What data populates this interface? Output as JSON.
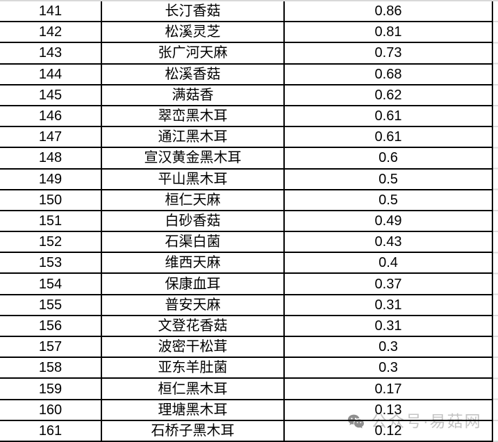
{
  "table": {
    "column_keys": [
      "rank",
      "name",
      "value"
    ],
    "rows": [
      {
        "rank": "141",
        "name": "长汀香菇",
        "value": "0.86"
      },
      {
        "rank": "142",
        "name": "松溪灵芝",
        "value": "0.81"
      },
      {
        "rank": "143",
        "name": "张广河天麻",
        "value": "0.73"
      },
      {
        "rank": "144",
        "name": "松溪香菇",
        "value": "0.68"
      },
      {
        "rank": "145",
        "name": "满菇香",
        "value": "0.62"
      },
      {
        "rank": "146",
        "name": "翠峦黑木耳",
        "value": "0.61"
      },
      {
        "rank": "147",
        "name": "通江黑木耳",
        "value": "0.61"
      },
      {
        "rank": "148",
        "name": "宣汉黄金黑木耳",
        "value": "0.6"
      },
      {
        "rank": "149",
        "name": "平山黑木耳",
        "value": "0.5"
      },
      {
        "rank": "150",
        "name": "桓仁天麻",
        "value": "0.5"
      },
      {
        "rank": "151",
        "name": "白砂香菇",
        "value": "0.49"
      },
      {
        "rank": "152",
        "name": "石渠白菌",
        "value": "0.43"
      },
      {
        "rank": "153",
        "name": "维西天麻",
        "value": "0.4"
      },
      {
        "rank": "154",
        "name": "保康血耳",
        "value": "0.37"
      },
      {
        "rank": "155",
        "name": "普安天麻",
        "value": "0.31"
      },
      {
        "rank": "156",
        "name": "文登花香菇",
        "value": "0.31"
      },
      {
        "rank": "157",
        "name": "波密干松茸",
        "value": "0.3"
      },
      {
        "rank": "158",
        "name": "亚东羊肚菌",
        "value": "0.3"
      },
      {
        "rank": "159",
        "name": "桓仁黑木耳",
        "value": "0.17"
      },
      {
        "rank": "160",
        "name": "理塘黑木耳",
        "value": "0.13"
      },
      {
        "rank": "161",
        "name": "石桥子黑木耳",
        "value": "0.12"
      }
    ]
  },
  "watermark": {
    "icon": "wechat-icon",
    "text": "公众号·易菇网"
  },
  "colors": {
    "border": "#000000",
    "cell_text": "#000000",
    "top_strip": "#d8d8d8",
    "gridline_stub": "#dcdcdc",
    "watermark_text": "#c4c4c4",
    "watermark_icon": "#8f8f8f",
    "background": "#ffffff"
  }
}
